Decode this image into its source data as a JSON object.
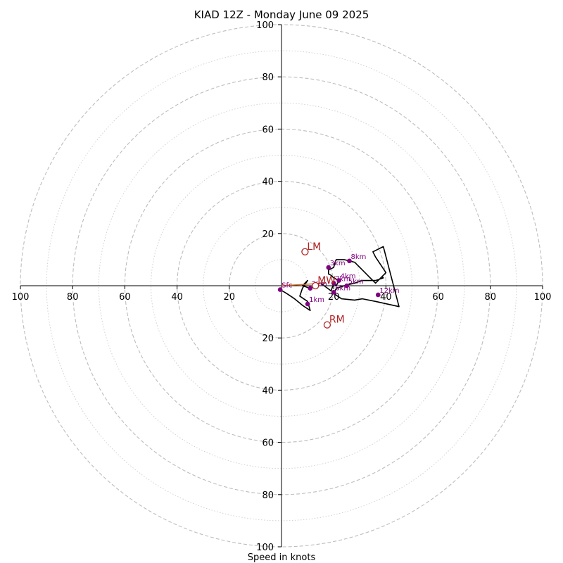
{
  "chart_data": {
    "type": "hodograph",
    "title": "KIAD 12Z - Monday June 09 2025",
    "xlabel": "Speed in knots",
    "units": "knots",
    "xlim": [
      -100,
      100
    ],
    "ylim": [
      -100,
      100
    ],
    "rings_major": [
      20,
      40,
      60,
      80,
      100
    ],
    "rings_minor": [
      10,
      30,
      50,
      70,
      90
    ],
    "tick_values": [
      20,
      40,
      60,
      80,
      100
    ],
    "tick_labels": {
      "left": [
        "100",
        "80",
        "60",
        "40",
        "20"
      ],
      "right": [
        "20",
        "40",
        "60",
        "80",
        "100"
      ],
      "top": [
        "20",
        "40",
        "60",
        "80",
        "100"
      ],
      "bottom": [
        "20",
        "40",
        "60",
        "80",
        "100"
      ]
    },
    "colors": {
      "trace": "#000000",
      "height_markers": "#800080",
      "storm_motion": "#b22222",
      "mean_wind_line": "#d2691e",
      "major_rings": "#bdbdbd",
      "minor_rings": "#d0d0d0",
      "axes": "#000000"
    },
    "trace": [
      [
        -0.5,
        -1.5
      ],
      [
        2,
        -3
      ],
      [
        5,
        -5
      ],
      [
        8,
        -7.5
      ],
      [
        11,
        -9.5
      ],
      [
        10,
        -6
      ],
      [
        7,
        -4
      ],
      [
        8,
        -1
      ],
      [
        10,
        2
      ],
      [
        8,
        0
      ],
      [
        11,
        -1
      ],
      [
        13,
        0
      ],
      [
        15,
        1
      ],
      [
        17,
        -0.5
      ],
      [
        19,
        -2
      ],
      [
        20,
        1
      ],
      [
        21,
        0
      ],
      [
        22,
        2
      ],
      [
        20,
        3
      ],
      [
        19,
        4
      ],
      [
        18,
        4.5
      ],
      [
        18,
        6
      ],
      [
        20,
        7
      ],
      [
        20.5,
        9
      ],
      [
        21,
        10
      ],
      [
        24,
        10
      ],
      [
        26,
        9.5
      ],
      [
        28,
        9
      ],
      [
        30,
        7
      ],
      [
        32,
        5
      ],
      [
        34,
        3
      ],
      [
        36,
        1
      ],
      [
        38,
        3
      ],
      [
        40,
        5
      ],
      [
        38,
        8
      ],
      [
        36,
        11
      ],
      [
        35,
        13
      ],
      [
        39,
        15
      ],
      [
        45,
        -8
      ],
      [
        36,
        -6
      ],
      [
        31,
        -5
      ],
      [
        28,
        -5.5
      ],
      [
        23,
        -5
      ],
      [
        20,
        -3
      ],
      [
        21,
        -1
      ],
      [
        24,
        0
      ],
      [
        28,
        1
      ],
      [
        31,
        2
      ],
      [
        36,
        2
      ],
      [
        39,
        3
      ],
      [
        38.5,
        3.5
      ]
    ],
    "height_markers": [
      {
        "label": "Sfc",
        "u": -0.5,
        "v": -1.5
      },
      {
        "label": "1km",
        "u": 10,
        "v": -7
      },
      {
        "label": "2km",
        "u": 11,
        "v": -1
      },
      {
        "label": "3km",
        "u": 18,
        "v": 7
      },
      {
        "label": "4km",
        "u": 22,
        "v": 2
      },
      {
        "label": "5km",
        "u": 25,
        "v": 0
      },
      {
        "label": "6km",
        "u": 20,
        "v": -2.5
      },
      {
        "label": "7km",
        "u": 20,
        "v": 1
      },
      {
        "label": "8km",
        "u": 26,
        "v": 9.5
      },
      {
        "label": "12km",
        "u": 37,
        "v": -3.5
      }
    ],
    "storm_motion": [
      {
        "label": "LM",
        "u": 9,
        "v": 13
      },
      {
        "label": "RM",
        "u": 17.5,
        "v": -15
      },
      {
        "label": "MW",
        "u": 13,
        "v": 0
      }
    ],
    "mean_wind_segment": [
      [
        0,
        0
      ],
      [
        17,
        1
      ]
    ]
  }
}
